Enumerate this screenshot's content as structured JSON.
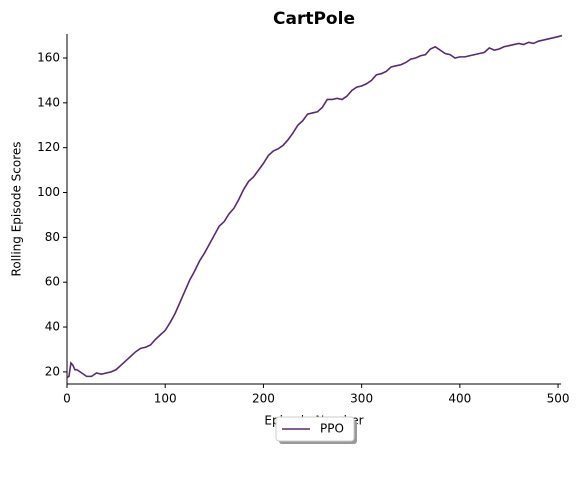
{
  "chart_data": {
    "type": "line",
    "title": "CartPole",
    "xlabel": "Episode Number",
    "ylabel": "Rolling Episode Scores",
    "x": [
      0,
      2,
      4,
      6,
      8,
      10,
      15,
      20,
      25,
      30,
      35,
      40,
      45,
      50,
      55,
      60,
      65,
      70,
      75,
      80,
      85,
      90,
      95,
      100,
      105,
      110,
      115,
      120,
      125,
      130,
      135,
      140,
      145,
      150,
      155,
      160,
      165,
      170,
      175,
      180,
      185,
      190,
      195,
      200,
      205,
      210,
      215,
      220,
      225,
      230,
      235,
      240,
      245,
      250,
      255,
      260,
      265,
      270,
      275,
      280,
      285,
      290,
      295,
      300,
      305,
      310,
      315,
      320,
      325,
      330,
      335,
      340,
      345,
      350,
      355,
      360,
      365,
      370,
      375,
      380,
      385,
      390,
      395,
      400,
      405,
      410,
      415,
      420,
      425,
      430,
      435,
      440,
      445,
      450,
      455,
      460,
      465,
      470,
      475,
      480,
      485,
      490,
      495,
      500,
      504
    ],
    "series": [
      {
        "name": "PPO",
        "color": "#582a72",
        "values": [
          17.5,
          18,
          24,
          23,
          21,
          21,
          19.5,
          18,
          18,
          19.5,
          19,
          19.5,
          20,
          21,
          23,
          25,
          27,
          29,
          30.5,
          31,
          32,
          34.5,
          36.5,
          38.5,
          42,
          46,
          51,
          56,
          61,
          65,
          69.5,
          73,
          77,
          81,
          85,
          87,
          90.5,
          93,
          97,
          101.5,
          105,
          107,
          110,
          113,
          116.5,
          118.5,
          119.5,
          121,
          123.5,
          126.5,
          130,
          132,
          135,
          135.5,
          136,
          138,
          141.5,
          141.5,
          142,
          141.5,
          143,
          145.5,
          147,
          147.5,
          148.5,
          150,
          152.5,
          153,
          154,
          156,
          156.5,
          157,
          158,
          159.5,
          160,
          161,
          161.5,
          164,
          165,
          163.5,
          162,
          161.5,
          160,
          160.5,
          160.5,
          161,
          161.5,
          162,
          162.5,
          164.5,
          163.5,
          164,
          165,
          165.5,
          166,
          166.5,
          166,
          167,
          166.5,
          167.5,
          168,
          168.5,
          169,
          169.5,
          170
        ]
      }
    ],
    "xlim": [
      0,
      503
    ],
    "ylim": [
      14.6,
      170.7
    ],
    "xticks": [
      0,
      100,
      200,
      300,
      400,
      500
    ],
    "yticks": [
      20,
      40,
      60,
      80,
      100,
      120,
      140,
      160
    ]
  }
}
